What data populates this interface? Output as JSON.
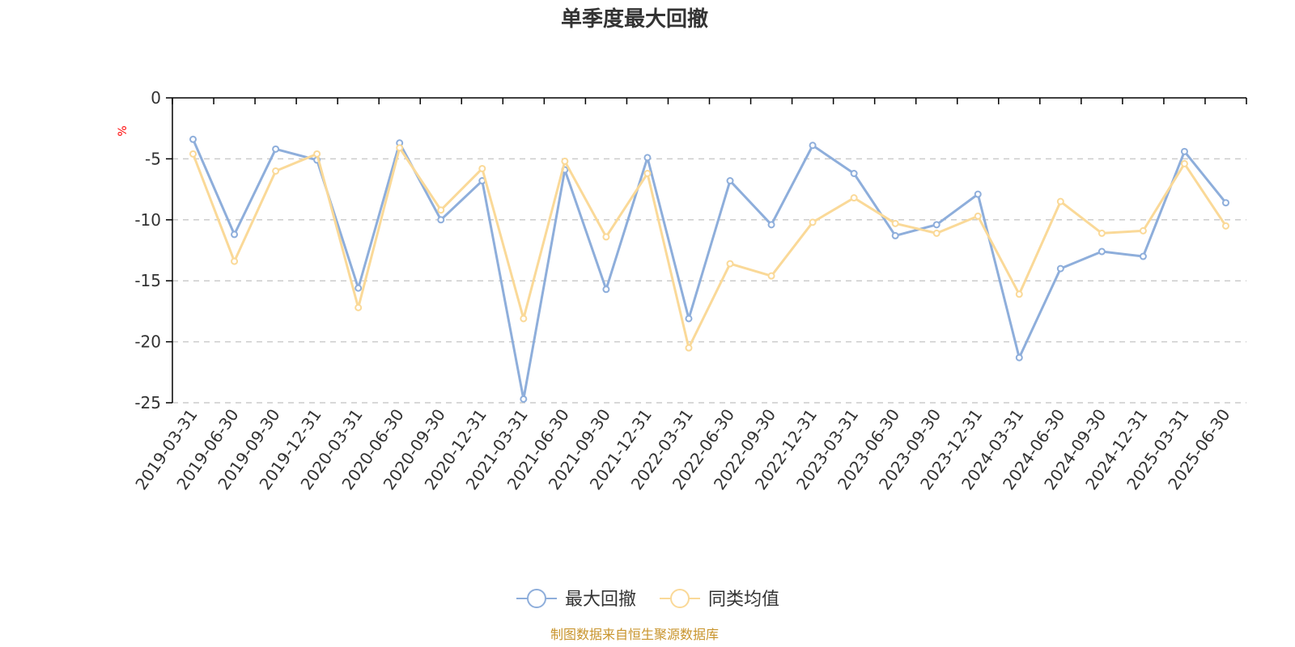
{
  "chart_data": {
    "type": "line",
    "title": "单季度最大回撤",
    "ylabel": "%",
    "ylim": [
      -25,
      0
    ],
    "yticks": [
      0,
      -5,
      -10,
      -15,
      -20,
      -25
    ],
    "grid": true,
    "legend_position": "bottom",
    "categories": [
      "2019-03-31",
      "2019-06-30",
      "2019-09-30",
      "2019-12-31",
      "2020-03-31",
      "2020-06-30",
      "2020-09-30",
      "2020-12-31",
      "2021-03-31",
      "2021-06-30",
      "2021-09-30",
      "2021-12-31",
      "2022-03-31",
      "2022-06-30",
      "2022-09-30",
      "2022-12-31",
      "2023-03-31",
      "2023-06-30",
      "2023-09-30",
      "2023-12-31",
      "2024-03-31",
      "2024-06-30",
      "2024-09-30",
      "2024-12-31",
      "2025-03-31",
      "2025-06-30"
    ],
    "series": [
      {
        "name": "最大回撤",
        "color": "#8eaedb",
        "values": [
          -3.4,
          -11.2,
          -4.2,
          -5.1,
          -15.6,
          -3.7,
          -10.0,
          -6.8,
          -24.7,
          -5.9,
          -15.7,
          -4.9,
          -18.1,
          -6.8,
          -10.4,
          -3.9,
          -6.2,
          -11.3,
          -10.4,
          -7.9,
          -21.3,
          -14.0,
          -12.6,
          -13.0,
          -4.4,
          -8.6
        ]
      },
      {
        "name": "同类均值",
        "color": "#fad998",
        "values": [
          -4.6,
          -13.4,
          -6.0,
          -4.6,
          -17.2,
          -4.1,
          -9.2,
          -5.8,
          -18.1,
          -5.2,
          -11.4,
          -6.2,
          -20.5,
          -13.6,
          -14.6,
          -10.2,
          -8.2,
          -10.3,
          -11.1,
          -9.7,
          -16.1,
          -8.5,
          -11.1,
          -10.9,
          -5.4,
          -10.5
        ]
      }
    ]
  },
  "source_text": "制图数据来自恒生聚源数据库",
  "colors": {
    "source": "#c8942c",
    "unit": "#ff0000",
    "axis": "#000000",
    "grid": "#cccccc"
  }
}
